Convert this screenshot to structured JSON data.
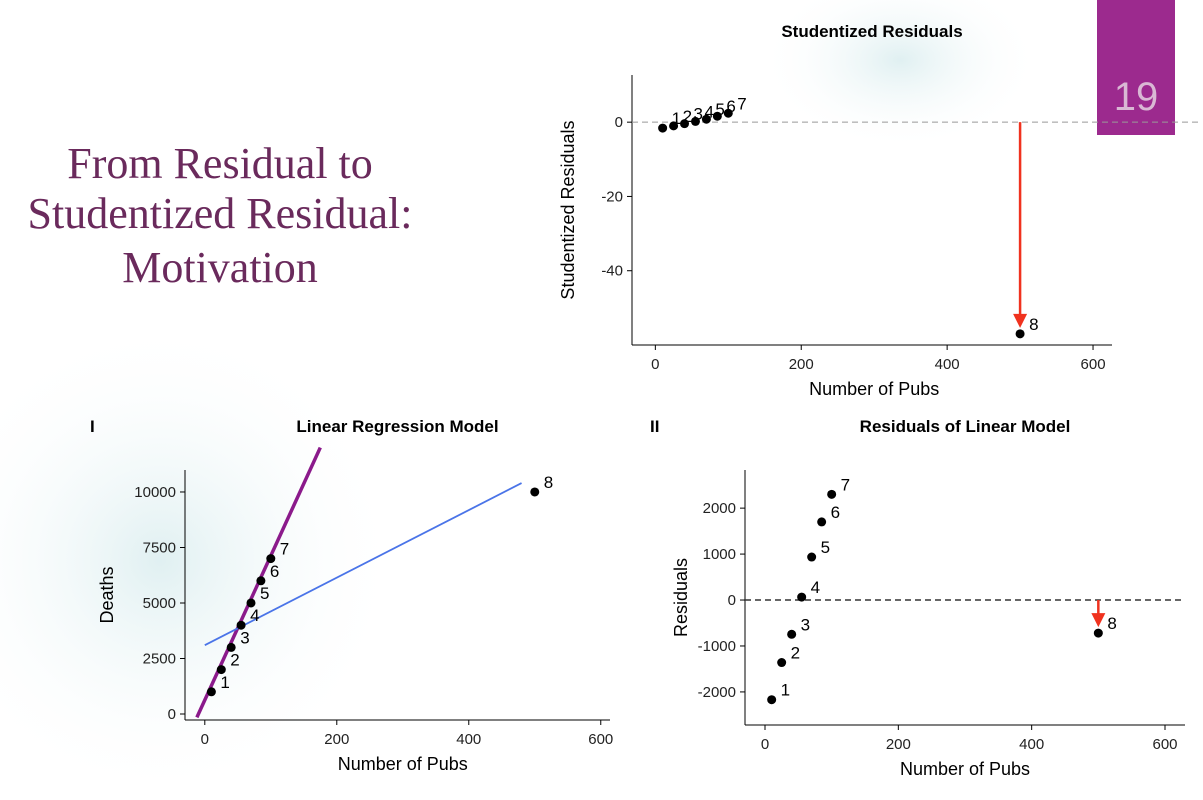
{
  "slide": {
    "title_lines": [
      "From Residual to",
      "Studentized Residual:",
      "Motivation"
    ],
    "page_number": "19"
  },
  "chart_data": [
    {
      "type": "scatter",
      "title": "Studentized Residuals",
      "x_label": "Number of Pubs",
      "y_label": "Studentized Residuals",
      "x": [
        10,
        25,
        40,
        55,
        70,
        85,
        100,
        500
      ],
      "values": [
        -1.6,
        -1,
        -0.4,
        0.2,
        0.8,
        1.6,
        2.4,
        -57
      ],
      "point_labels": [
        "1",
        "2",
        "3",
        "4",
        "5",
        "6",
        "7",
        "8"
      ],
      "xlim": [
        -32,
        626
      ],
      "ylim": [
        -60,
        12.7
      ],
      "xticks": [
        0,
        200,
        400,
        600
      ],
      "yticks": [
        0,
        -20,
        -40
      ],
      "refline": 0,
      "arrow": {
        "x": 500,
        "from": 0,
        "to": -57,
        "color": "#f0321e"
      }
    },
    {
      "type": "scatter",
      "panel": "I",
      "title": "Linear Regression Model",
      "x_label": "Number of Pubs",
      "y_label": "Deaths",
      "x": [
        10,
        25,
        40,
        55,
        70,
        85,
        100,
        500
      ],
      "values": [
        1000,
        2000,
        3000,
        4000,
        5000,
        6000,
        7000,
        10000
      ],
      "point_labels": [
        "1",
        "2",
        "3",
        "4",
        "5",
        "6",
        "7",
        "8"
      ],
      "xlim": [
        -30,
        614
      ],
      "ylim": [
        -270,
        10990
      ],
      "xticks": [
        0,
        200,
        400,
        600
      ],
      "yticks": [
        0,
        2500,
        5000,
        7500,
        10000
      ],
      "fit_lines": [
        {
          "color": "#8b1a8b",
          "x": [
            -12,
            175
          ],
          "y": [
            -150,
            12000
          ]
        },
        {
          "color": "#4a74e8",
          "x": [
            0,
            480
          ],
          "y": [
            3100,
            10400
          ]
        }
      ]
    },
    {
      "type": "scatter",
      "panel": "II",
      "title": "Residuals of Linear Model",
      "x_label": "Number of Pubs",
      "y_label": "Residuals",
      "x": [
        10,
        25,
        40,
        55,
        70,
        85,
        100,
        500
      ],
      "values": [
        -2170,
        -1360,
        -745,
        64,
        936,
        1700,
        2300,
        -720
      ],
      "point_labels": [
        "1",
        "2",
        "3",
        "4",
        "5",
        "6",
        "7",
        "8"
      ],
      "xlim": [
        -30,
        630
      ],
      "ylim": [
        -2720,
        2830
      ],
      "xticks": [
        0,
        200,
        400,
        600
      ],
      "yticks": [
        -2000,
        -1000,
        0,
        1000,
        2000
      ],
      "refline": 0,
      "arrow": {
        "x": 500,
        "from": 0,
        "to": -720,
        "color": "#f0321e"
      }
    }
  ]
}
